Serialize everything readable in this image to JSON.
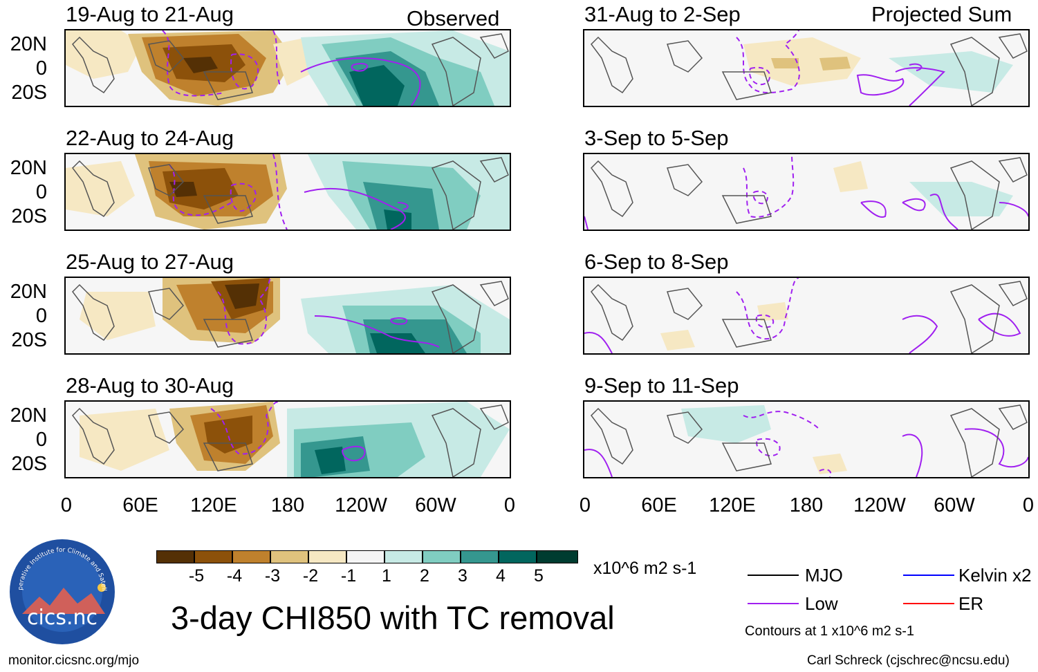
{
  "panels_left": {
    "header": "Observed",
    "titles": [
      "19-Aug to 21-Aug",
      "22-Aug to 24-Aug",
      "25-Aug to 27-Aug",
      "28-Aug to 30-Aug"
    ]
  },
  "panels_right": {
    "header": "Projected Sum",
    "titles": [
      "31-Aug to 2-Sep",
      "3-Sep to 5-Sep",
      "6-Sep to 8-Sep",
      "9-Sep to 11-Sep"
    ]
  },
  "lat_labels": [
    "20N",
    "0",
    "20S"
  ],
  "lon_labels": [
    "0",
    "60E",
    "120E",
    "180",
    "120W",
    "60W",
    "0"
  ],
  "colorbar": {
    "ticks": [
      "-5",
      "-4",
      "-3",
      "-2",
      "-1",
      "1",
      "2",
      "3",
      "4",
      "5"
    ],
    "colors": [
      "#543005",
      "#8c510a",
      "#bf812d",
      "#dfc27d",
      "#f6e8c3",
      "#f5f5f5",
      "#c7eae5",
      "#80cdc1",
      "#35978f",
      "#01665e",
      "#003c30"
    ],
    "units": "x10^6 m2 s-1"
  },
  "title": "3-day CHI850 with TC removal",
  "legend": {
    "items": [
      {
        "label": "MJO",
        "color": "#000000"
      },
      {
        "label": "Kelvin x2",
        "color": "#0000ff"
      },
      {
        "label": "Low",
        "color": "#a020f0"
      },
      {
        "label": "ER",
        "color": "#ff0000"
      }
    ],
    "contours_note": "Contours at 1 x10^6 m2 s-1"
  },
  "logo": {
    "arc_text": "Cooperative Institute for Climate and Satellites",
    "name": "cics.nc"
  },
  "footer": {
    "url": "monitor.cicsnc.org/mjo",
    "credit": "Carl Schreck (cjschrec@ncsu.edu)"
  },
  "colors": {
    "low_contour": "#a020f0",
    "coast": "#555555"
  }
}
